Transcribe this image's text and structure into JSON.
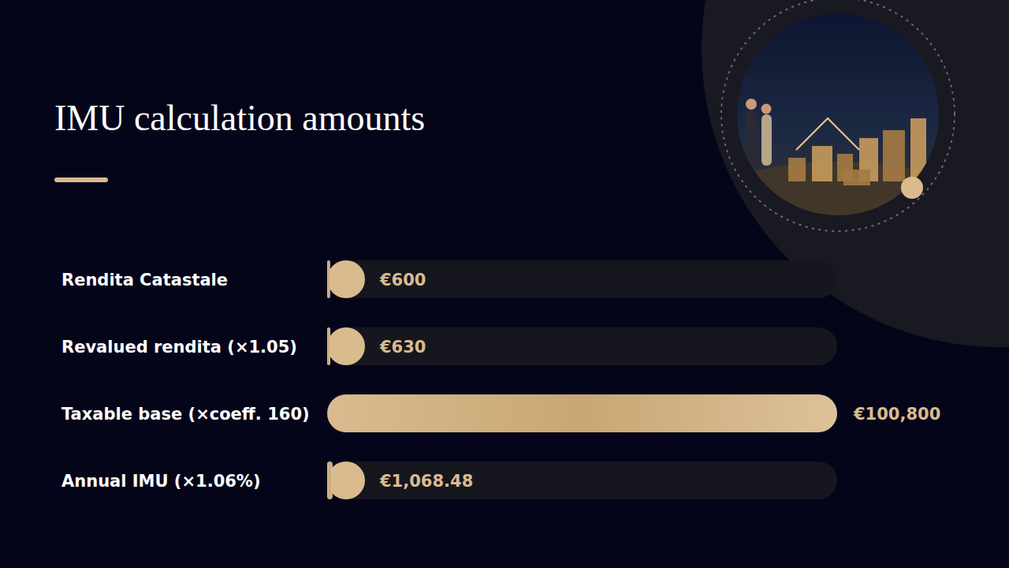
{
  "chart_data": {
    "type": "bar",
    "orientation": "horizontal",
    "title": "IMU calculation amounts",
    "categories": [
      "Rendita Catastale",
      "Revalued rendita (×1.05)",
      "Taxable base (×coeff. 160)",
      "Annual IMU (×1.06%)"
    ],
    "values": [
      600,
      630,
      100800,
      1068.48
    ],
    "value_labels": [
      "€600",
      "€630",
      "€100,800",
      "€1,068.48"
    ],
    "xlim": [
      0,
      100800
    ],
    "color": "#d9bb8e",
    "data_labels": true,
    "tick_labels": false,
    "grid": false
  }
}
